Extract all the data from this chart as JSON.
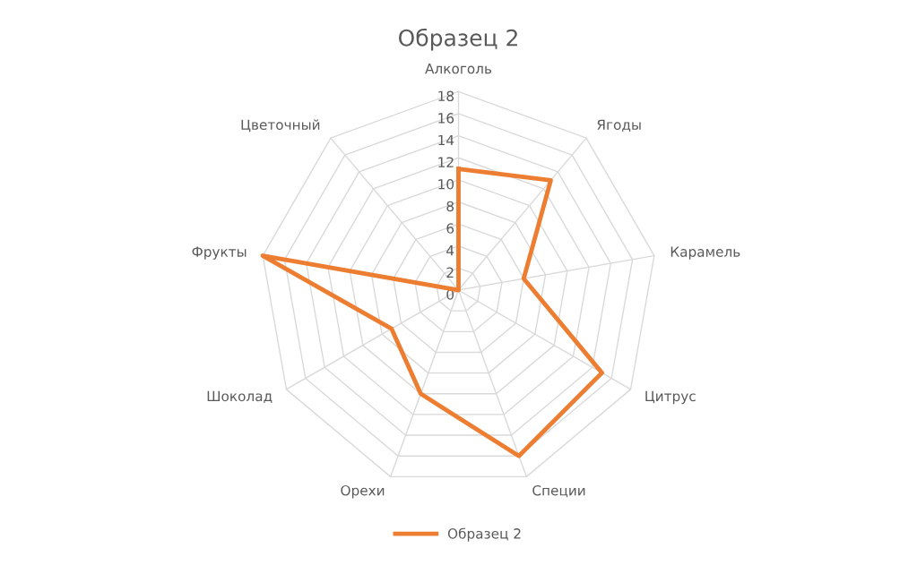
{
  "chart_data": {
    "type": "radar",
    "title": "Образец 2",
    "categories": [
      "Алкоголь",
      "Ягоды",
      "Карамель",
      "Цитрус",
      "Специи",
      "Орехи",
      "Шоколад",
      "Фрукты",
      "Цветочный"
    ],
    "series": [
      {
        "name": "Образец 2",
        "color": "#ed7d31",
        "values": [
          11,
          13,
          6,
          15,
          16,
          10,
          7,
          18,
          0
        ]
      }
    ],
    "ylim": [
      0,
      18
    ],
    "yticks": [
      0,
      2,
      4,
      6,
      8,
      10,
      12,
      14,
      16,
      18
    ],
    "grid": true,
    "legend": "bottom",
    "marker": "none",
    "line_style": "solid"
  }
}
